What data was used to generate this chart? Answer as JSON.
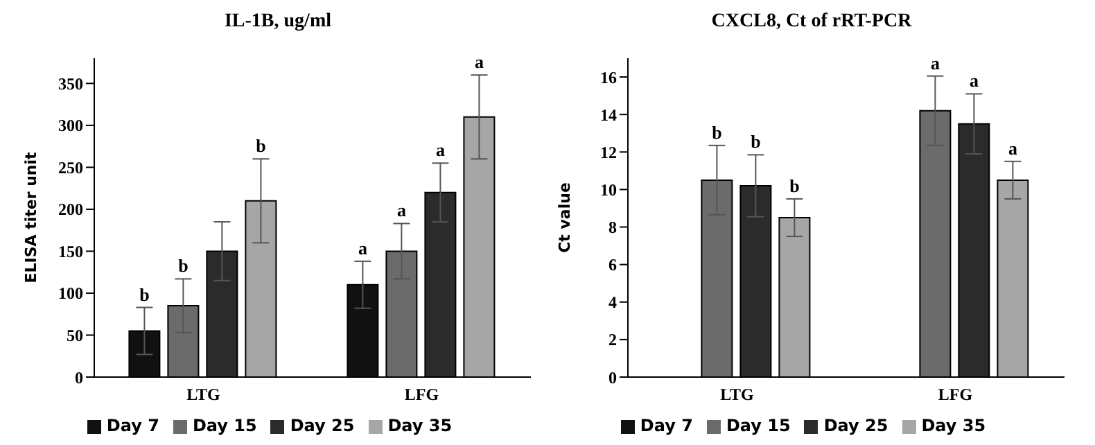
{
  "chart_data": [
    {
      "type": "bar",
      "title": "IL-1B, ug/ml",
      "ylabel": "ELISA titer unit",
      "categories": [
        "LTG",
        "LFG"
      ],
      "ylim": [
        0,
        380
      ],
      "yticks": [
        0,
        50,
        100,
        150,
        200,
        250,
        300,
        350
      ],
      "legend": "bottom",
      "grid": false,
      "series": [
        {
          "name": "Day 7",
          "color": "#111111",
          "values": [
            55,
            110
          ],
          "errors": [
            28,
            28
          ],
          "value_labels": [
            "b",
            "a"
          ]
        },
        {
          "name": "Day 15",
          "color": "#6b6b6b",
          "values": [
            85,
            150
          ],
          "errors": [
            32,
            33
          ],
          "value_labels": [
            "b",
            "a"
          ]
        },
        {
          "name": "Day 25",
          "color": "#2b2b2b",
          "values": [
            150,
            220
          ],
          "errors": [
            35,
            35
          ],
          "value_labels": [
            null,
            "a"
          ]
        },
        {
          "name": "Day 35",
          "color": "#a6a6a6",
          "values": [
            210,
            310
          ],
          "errors": [
            50,
            50
          ],
          "value_labels": [
            "b",
            "a"
          ]
        }
      ]
    },
    {
      "type": "bar",
      "title": "CXCL8, Ct of rRT-PCR",
      "ylabel": "Ct value",
      "categories": [
        "LTG",
        "LFG"
      ],
      "ylim": [
        0,
        17
      ],
      "yticks": [
        0,
        2,
        4,
        6,
        8,
        10,
        12,
        14,
        16
      ],
      "legend": "bottom",
      "grid": false,
      "series": [
        {
          "name": "Day 7",
          "color": "#111111",
          "values": [
            null,
            null
          ]
        },
        {
          "name": "Day 15",
          "color": "#6b6b6b",
          "values": [
            10.5,
            14.2
          ],
          "errors": [
            1.85,
            1.85
          ],
          "value_labels": [
            "b",
            "a"
          ]
        },
        {
          "name": "Day 25",
          "color": "#2b2b2b",
          "values": [
            10.2,
            13.5
          ],
          "errors": [
            1.65,
            1.6
          ],
          "value_labels": [
            "b",
            "a"
          ]
        },
        {
          "name": "Day 35",
          "color": "#a6a6a6",
          "values": [
            8.5,
            10.5
          ],
          "errors": [
            1.0,
            1.0
          ],
          "value_labels": [
            "b",
            "a"
          ]
        }
      ]
    }
  ]
}
